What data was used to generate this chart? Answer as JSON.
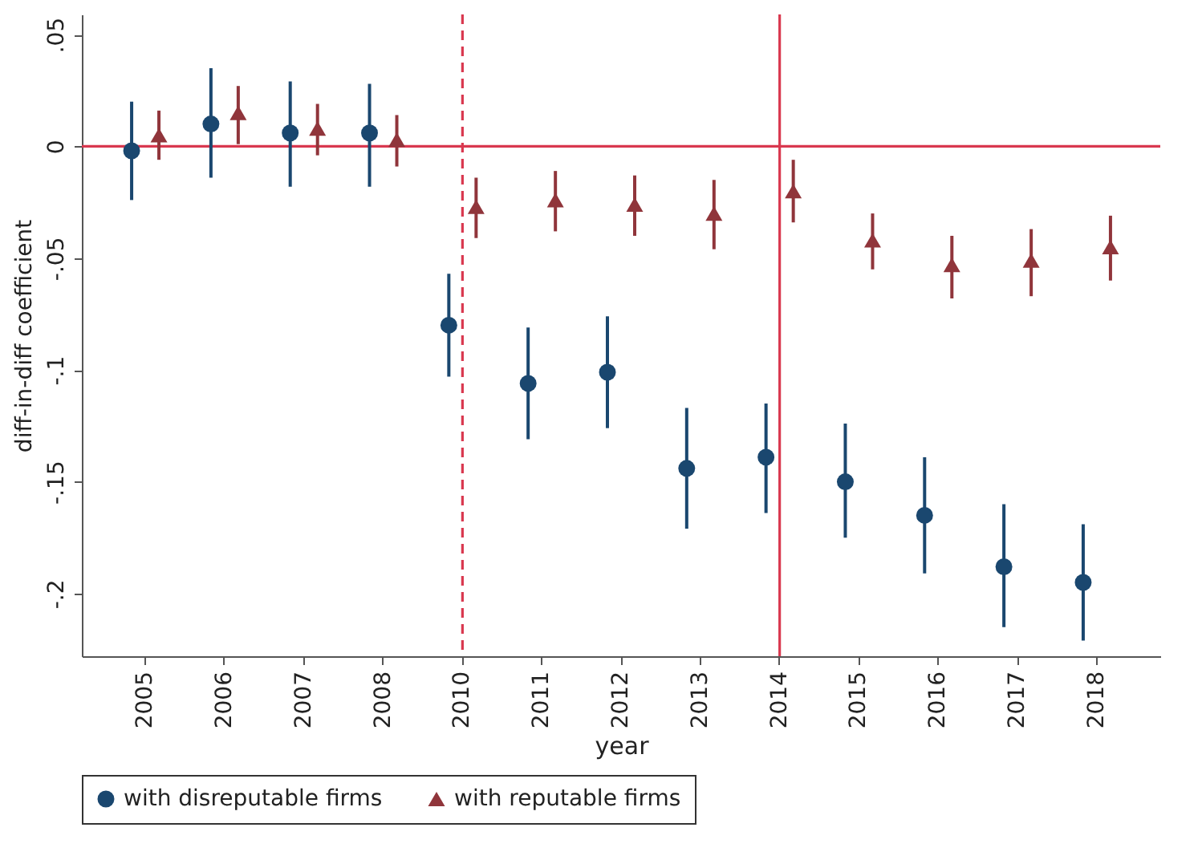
{
  "chart_data": {
    "type": "scatter",
    "xlabel": "year",
    "ylabel": "diff-in-diff coefficient",
    "categories": [
      "2005",
      "2006",
      "2007",
      "2008",
      "2010",
      "2011",
      "2012",
      "2013",
      "2014",
      "2015",
      "2016",
      "2017",
      "2018"
    ],
    "series": [
      {
        "name": "with disreputable firms",
        "color": "#1a476f",
        "marker": "circle",
        "values": [
          -0.002,
          0.01,
          0.006,
          0.006,
          -0.08,
          -0.106,
          -0.101,
          -0.144,
          -0.139,
          -0.15,
          -0.165,
          -0.188,
          -0.195
        ],
        "errors": [
          [
            -0.024,
            0.02
          ],
          [
            -0.014,
            0.035
          ],
          [
            -0.018,
            0.029
          ],
          [
            -0.018,
            0.028
          ],
          [
            -0.103,
            -0.057
          ],
          [
            -0.131,
            -0.081
          ],
          [
            -0.126,
            -0.076
          ],
          [
            -0.171,
            -0.117
          ],
          [
            -0.164,
            -0.115
          ],
          [
            -0.175,
            -0.124
          ],
          [
            -0.191,
            -0.139
          ],
          [
            -0.215,
            -0.16
          ],
          [
            -0.221,
            -0.169
          ]
        ]
      },
      {
        "name": "with reputable firms",
        "color": "#90353b",
        "marker": "triangle",
        "values": [
          0.005,
          0.015,
          0.008,
          0.003,
          -0.027,
          -0.024,
          -0.026,
          -0.03,
          -0.02,
          -0.042,
          -0.053,
          -0.051,
          -0.045
        ],
        "errors": [
          [
            -0.006,
            0.016
          ],
          [
            0.001,
            0.027
          ],
          [
            -0.004,
            0.019
          ],
          [
            -0.009,
            0.014
          ],
          [
            -0.041,
            -0.014
          ],
          [
            -0.038,
            -0.011
          ],
          [
            -0.04,
            -0.013
          ],
          [
            -0.046,
            -0.015
          ],
          [
            -0.034,
            -0.006
          ],
          [
            -0.055,
            -0.03
          ],
          [
            -0.068,
            -0.04
          ],
          [
            -0.067,
            -0.037
          ],
          [
            -0.06,
            -0.031
          ]
        ]
      }
    ],
    "ylim": [
      -0.228,
      0.059
    ],
    "yticks": [
      {
        "value": 0.05,
        "label": ".05"
      },
      0,
      {
        "value": -0.05,
        "label": "-.05"
      },
      {
        "value": -0.1,
        "label": "-.1"
      },
      {
        "value": -0.15,
        "label": "-.15"
      },
      {
        "value": -0.2,
        "label": "-.2"
      }
    ],
    "ref_lines": [
      {
        "axis": "y",
        "value": 0,
        "color": "#d9384f",
        "line_style": "solid"
      },
      {
        "axis": "x",
        "value": "2010",
        "color": "#d9384f",
        "line_style": "dashed"
      },
      {
        "axis": "x",
        "value": "2014",
        "color": "#d9384f",
        "line_style": "solid"
      }
    ],
    "grid": false,
    "legend": "bottom"
  }
}
